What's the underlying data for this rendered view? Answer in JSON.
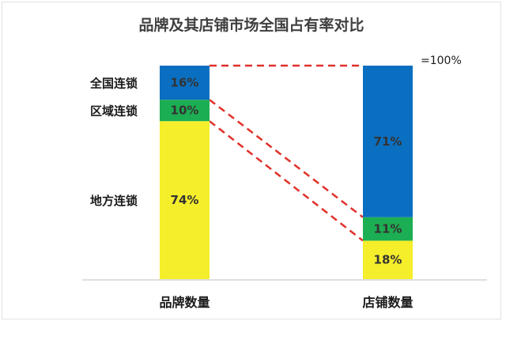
{
  "chart_data": {
    "type": "bar",
    "stacked": true,
    "title": "品牌及其店铺市场全国占有率对比",
    "categories": [
      "品牌数量",
      "店铺数量"
    ],
    "series": [
      {
        "name": "地方连锁",
        "values": [
          74,
          18
        ],
        "labels": [
          "74%",
          "18%"
        ]
      },
      {
        "name": "区域连锁",
        "values": [
          10,
          11
        ],
        "labels": [
          "10%",
          "11%"
        ]
      },
      {
        "name": "全国连锁",
        "values": [
          16,
          71
        ],
        "labels": [
          "16%",
          "71%"
        ]
      }
    ],
    "annotation": "=100%",
    "ylim": [
      0,
      100
    ],
    "grid": false,
    "legend": "left, beside first bar"
  },
  "colors": {
    "地方连锁": "#f5ee2a",
    "区域连锁": "#1cae52",
    "全国连锁": "#0a6fc0",
    "connector": "#e0302a",
    "axis": "#bfbfbf"
  }
}
